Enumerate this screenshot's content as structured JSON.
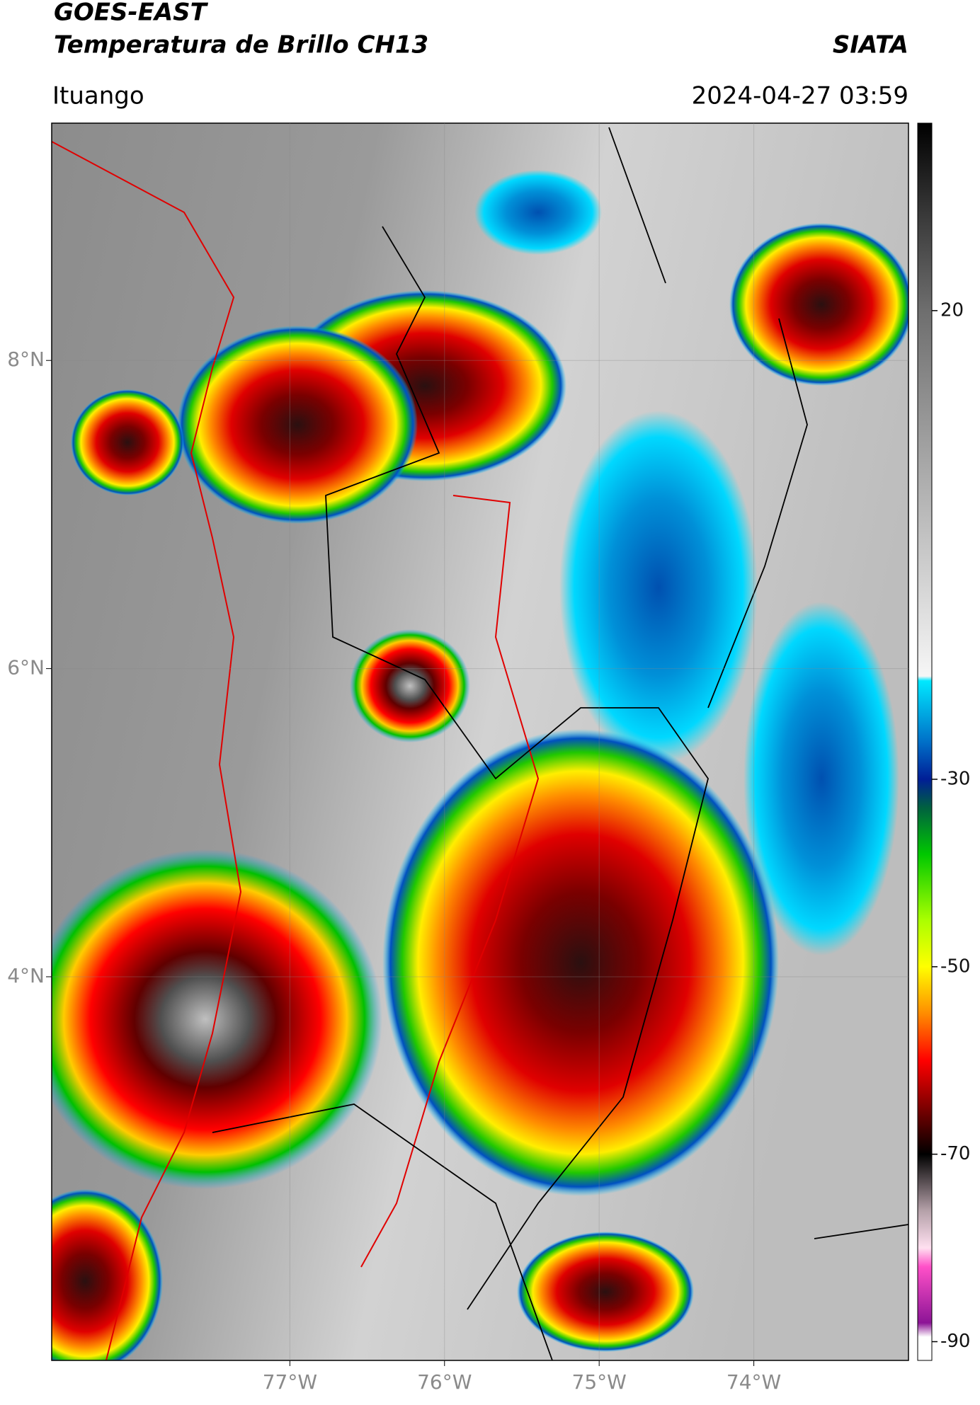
{
  "header": {
    "title": "GOES-EAST",
    "subtitle": "Temperatura de Brillo CH13",
    "source": "SIATA",
    "location": "Ituango",
    "datetime": "2024-04-27 03:59"
  },
  "map": {
    "xlim": [
      -78.54,
      -73.0
    ],
    "ylim": [
      1.51,
      9.54
    ],
    "xticks": [
      {
        "value": -77,
        "label": "77°W"
      },
      {
        "value": -76,
        "label": "76°W"
      },
      {
        "value": -75,
        "label": "75°W"
      },
      {
        "value": -74,
        "label": "74°W"
      }
    ],
    "yticks": [
      {
        "value": 8,
        "label": "8°N"
      },
      {
        "value": 6,
        "label": "6°N"
      },
      {
        "value": 4,
        "label": "4°N"
      }
    ],
    "grid": true
  },
  "colorbar": {
    "clim": [
      -92,
      40
    ],
    "ticks": [
      20,
      -30,
      -50,
      -70,
      -90
    ],
    "stops": [
      {
        "value": 40,
        "color": "#000000"
      },
      {
        "value": 30,
        "color": "#3a3a3a"
      },
      {
        "value": 20,
        "color": "#6e6e6e"
      },
      {
        "value": 0,
        "color": "#b4b4b4"
      },
      {
        "value": -19,
        "color": "#f6f6f6"
      },
      {
        "value": -19.5,
        "color": "#00e8ff"
      },
      {
        "value": -26,
        "color": "#0070c8"
      },
      {
        "value": -30,
        "color": "#001e96"
      },
      {
        "value": -33,
        "color": "#006040"
      },
      {
        "value": -38,
        "color": "#00c800"
      },
      {
        "value": -45,
        "color": "#aaff00"
      },
      {
        "value": -50,
        "color": "#ffff00"
      },
      {
        "value": -55,
        "color": "#ff8c00"
      },
      {
        "value": -60,
        "color": "#ff0000"
      },
      {
        "value": -66,
        "color": "#640000"
      },
      {
        "value": -70,
        "color": "#000000"
      },
      {
        "value": -76,
        "color": "#b4a0a8"
      },
      {
        "value": -80,
        "color": "#ffe0f0"
      },
      {
        "value": -82,
        "color": "#ff50c8"
      },
      {
        "value": -88,
        "color": "#8c1496"
      },
      {
        "value": -89.5,
        "color": "#ffffff"
      },
      {
        "value": -92,
        "color": "#ffffff"
      }
    ]
  }
}
